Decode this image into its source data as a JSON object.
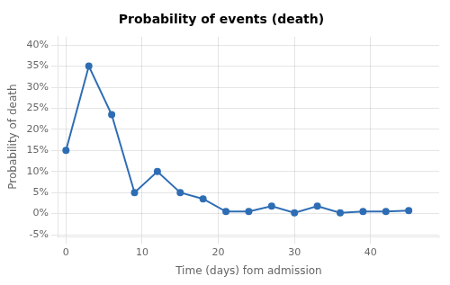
{
  "chart_data": {
    "type": "line",
    "title": "Probability of events (death)",
    "xlabel": "Time (days) fom admission",
    "ylabel": "Probability of death",
    "x": [
      0,
      3,
      6,
      9,
      12,
      15,
      18,
      21,
      24,
      27,
      30,
      33,
      36,
      39,
      42,
      45
    ],
    "values": [
      0.15,
      0.35,
      0.235,
      0.05,
      0.1,
      0.05,
      0.035,
      0.005,
      0.005,
      0.018,
      0.002,
      0.018,
      0.002,
      0.005,
      0.005,
      0.007
    ],
    "color": "#2E6DB4",
    "marker": "circle",
    "line_style": "solid",
    "xlim": [
      -1,
      49
    ],
    "ylim": [
      -0.055,
      0.42
    ],
    "xticks": [
      0,
      10,
      20,
      30,
      40
    ],
    "yticks": [
      {
        "value": -0.05,
        "label": "-5%"
      },
      {
        "value": 0.0,
        "label": "0%"
      },
      {
        "value": 0.05,
        "label": "5%"
      },
      {
        "value": 0.1,
        "label": "10%"
      },
      {
        "value": 0.15,
        "label": "15%"
      },
      {
        "value": 0.2,
        "label": "20%"
      },
      {
        "value": 0.25,
        "label": "25%"
      },
      {
        "value": 0.3,
        "label": "30%"
      },
      {
        "value": 0.35,
        "label": "35%"
      },
      {
        "value": 0.4,
        "label": "40%"
      }
    ],
    "grid": true
  }
}
